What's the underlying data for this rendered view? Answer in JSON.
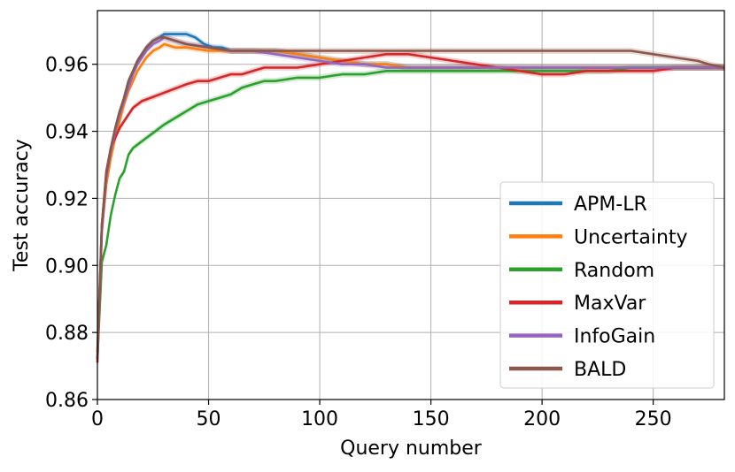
{
  "chart_data": {
    "type": "line",
    "xlabel": "Query number",
    "ylabel": "Test accuracy",
    "xlim": [
      0,
      282
    ],
    "ylim": [
      0.86,
      0.976
    ],
    "xticks": [
      0,
      50,
      100,
      150,
      200,
      250
    ],
    "yticks": [
      0.86,
      0.88,
      0.9,
      0.92,
      0.94,
      0.96
    ],
    "ytick_labels": [
      "0.86",
      "0.88",
      "0.90",
      "0.92",
      "0.94",
      "0.96"
    ],
    "xtick_labels": [
      "0",
      "50",
      "100",
      "150",
      "200",
      "250"
    ],
    "grid": true,
    "legend_position": "lower-right",
    "series": [
      {
        "name": "APM-LR",
        "color": "#1f77b4",
        "x": [
          0,
          2,
          4,
          6,
          8,
          10,
          12,
          14,
          16,
          18,
          20,
          22,
          25,
          28,
          30,
          33,
          36,
          40,
          44,
          48,
          52,
          56,
          60,
          70,
          80,
          90,
          100,
          110,
          120,
          130,
          140,
          150,
          160,
          170,
          180,
          200,
          220,
          240,
          260,
          282
        ],
        "y": [
          0.874,
          0.912,
          0.926,
          0.934,
          0.94,
          0.945,
          0.95,
          0.955,
          0.958,
          0.961,
          0.963,
          0.965,
          0.967,
          0.968,
          0.969,
          0.969,
          0.969,
          0.969,
          0.968,
          0.966,
          0.965,
          0.965,
          0.964,
          0.964,
          0.964,
          0.963,
          0.962,
          0.961,
          0.96,
          0.96,
          0.959,
          0.959,
          0.959,
          0.959,
          0.959,
          0.959,
          0.959,
          0.959,
          0.959,
          0.959
        ]
      },
      {
        "name": "Uncertainty",
        "color": "#ff7f0e",
        "x": [
          0,
          2,
          4,
          6,
          8,
          10,
          12,
          14,
          16,
          18,
          20,
          22,
          25,
          28,
          30,
          35,
          40,
          50,
          60,
          70,
          80,
          90,
          100,
          110,
          120,
          130,
          140,
          150,
          160,
          180,
          200,
          220,
          240,
          260,
          282
        ],
        "y": [
          0.874,
          0.91,
          0.924,
          0.932,
          0.938,
          0.943,
          0.948,
          0.952,
          0.955,
          0.958,
          0.96,
          0.962,
          0.964,
          0.965,
          0.966,
          0.965,
          0.965,
          0.964,
          0.964,
          0.964,
          0.964,
          0.963,
          0.962,
          0.961,
          0.96,
          0.96,
          0.959,
          0.959,
          0.959,
          0.959,
          0.959,
          0.959,
          0.959,
          0.959,
          0.959
        ]
      },
      {
        "name": "Random",
        "color": "#2ca02c",
        "x": [
          0,
          2,
          4,
          6,
          8,
          10,
          12,
          14,
          16,
          18,
          20,
          22,
          24,
          26,
          28,
          30,
          35,
          40,
          45,
          50,
          55,
          60,
          65,
          70,
          75,
          80,
          90,
          100,
          110,
          120,
          130,
          140,
          150,
          160,
          170,
          180,
          190,
          200,
          210,
          220,
          230,
          240,
          250,
          260,
          270,
          282
        ],
        "y": [
          0.872,
          0.901,
          0.906,
          0.915,
          0.921,
          0.926,
          0.928,
          0.933,
          0.935,
          0.936,
          0.937,
          0.938,
          0.939,
          0.94,
          0.941,
          0.942,
          0.944,
          0.946,
          0.948,
          0.949,
          0.95,
          0.951,
          0.953,
          0.954,
          0.955,
          0.955,
          0.956,
          0.956,
          0.957,
          0.957,
          0.958,
          0.958,
          0.958,
          0.958,
          0.958,
          0.958,
          0.958,
          0.958,
          0.958,
          0.958,
          0.958,
          0.959,
          0.959,
          0.959,
          0.959,
          0.959
        ]
      },
      {
        "name": "MaxVar",
        "color": "#d62728",
        "x": [
          0,
          2,
          4,
          6,
          8,
          10,
          12,
          14,
          16,
          18,
          20,
          24,
          28,
          32,
          36,
          40,
          45,
          50,
          55,
          60,
          65,
          70,
          75,
          80,
          85,
          90,
          100,
          110,
          120,
          130,
          140,
          150,
          160,
          170,
          180,
          190,
          200,
          205,
          210,
          220,
          230,
          240,
          250,
          260,
          270,
          282
        ],
        "y": [
          0.871,
          0.912,
          0.928,
          0.935,
          0.938,
          0.941,
          0.943,
          0.945,
          0.947,
          0.948,
          0.949,
          0.95,
          0.951,
          0.952,
          0.953,
          0.954,
          0.955,
          0.955,
          0.956,
          0.957,
          0.957,
          0.958,
          0.959,
          0.959,
          0.959,
          0.959,
          0.96,
          0.961,
          0.962,
          0.963,
          0.963,
          0.962,
          0.961,
          0.96,
          0.959,
          0.958,
          0.957,
          0.957,
          0.957,
          0.958,
          0.958,
          0.958,
          0.958,
          0.959,
          0.959,
          0.959
        ]
      },
      {
        "name": "InfoGain",
        "color": "#9467bd",
        "x": [
          0,
          2,
          4,
          6,
          8,
          10,
          12,
          14,
          16,
          18,
          20,
          22,
          25,
          28,
          30,
          35,
          40,
          50,
          60,
          70,
          80,
          90,
          100,
          110,
          120,
          130,
          140,
          150,
          160,
          180,
          200,
          220,
          240,
          260,
          282
        ],
        "y": [
          0.872,
          0.91,
          0.926,
          0.934,
          0.94,
          0.945,
          0.949,
          0.953,
          0.957,
          0.96,
          0.962,
          0.964,
          0.966,
          0.967,
          0.968,
          0.967,
          0.966,
          0.965,
          0.964,
          0.964,
          0.963,
          0.962,
          0.961,
          0.96,
          0.96,
          0.959,
          0.959,
          0.959,
          0.959,
          0.959,
          0.959,
          0.959,
          0.959,
          0.959,
          0.959
        ]
      },
      {
        "name": "BALD",
        "color": "#8c564b",
        "x": [
          0,
          2,
          4,
          6,
          8,
          10,
          12,
          14,
          16,
          18,
          20,
          22,
          25,
          28,
          30,
          35,
          40,
          50,
          60,
          70,
          80,
          90,
          100,
          120,
          140,
          160,
          180,
          200,
          220,
          240,
          250,
          260,
          270,
          275,
          282
        ],
        "y": [
          0.872,
          0.912,
          0.927,
          0.935,
          0.941,
          0.946,
          0.95,
          0.955,
          0.958,
          0.961,
          0.963,
          0.965,
          0.967,
          0.968,
          0.968,
          0.967,
          0.966,
          0.965,
          0.964,
          0.964,
          0.964,
          0.964,
          0.964,
          0.964,
          0.964,
          0.964,
          0.964,
          0.964,
          0.964,
          0.964,
          0.963,
          0.962,
          0.961,
          0.96,
          0.959
        ]
      }
    ]
  }
}
